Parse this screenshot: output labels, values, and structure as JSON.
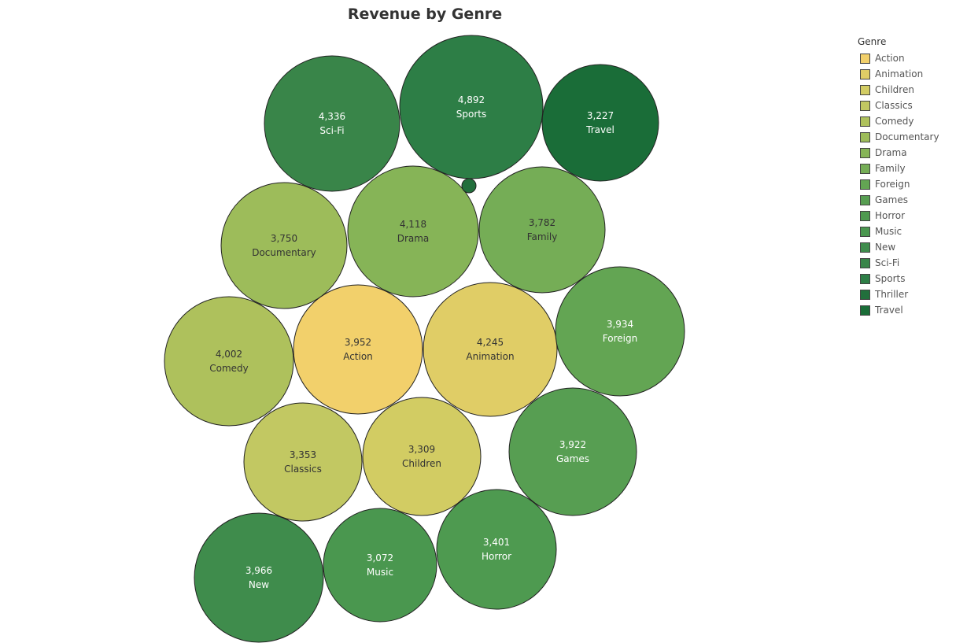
{
  "chart_data": {
    "type": "bubble",
    "title": "Revenue by Genre",
    "legend": {
      "title": "Genre",
      "items": [
        {
          "label": "Action",
          "color": "#f2d06b"
        },
        {
          "label": "Animation",
          "color": "#e0cd66"
        },
        {
          "label": "Children",
          "color": "#d2cc63"
        },
        {
          "label": "Classics",
          "color": "#c2c862"
        },
        {
          "label": "Comedy",
          "color": "#aec15c"
        },
        {
          "label": "Documentary",
          "color": "#9dbc5a"
        },
        {
          "label": "Drama",
          "color": "#86b457"
        },
        {
          "label": "Family",
          "color": "#75ad56"
        },
        {
          "label": "Foreign",
          "color": "#63a553"
        },
        {
          "label": "Games",
          "color": "#579e52"
        },
        {
          "label": "Horror",
          "color": "#4e9a50"
        },
        {
          "label": "Music",
          "color": "#4a974f"
        },
        {
          "label": "New",
          "color": "#3f8c4c"
        },
        {
          "label": "Sci-Fi",
          "color": "#398549"
        },
        {
          "label": "Sports",
          "color": "#2d7e46"
        },
        {
          "label": "Thriller",
          "color": "#226f3c"
        },
        {
          "label": "Travel",
          "color": "#1a6d38"
        }
      ]
    },
    "bubbles": [
      {
        "genre": "Sci-Fi",
        "value": 4336,
        "label_value": "4,336",
        "color": "#398549",
        "text_color": "#ffffff"
      },
      {
        "genre": "Sports",
        "value": 4892,
        "label_value": "4,892",
        "color": "#2d7e46",
        "text_color": "#ffffff"
      },
      {
        "genre": "Travel",
        "value": 3227,
        "label_value": "3,227",
        "color": "#1a6d38",
        "text_color": "#ffffff"
      },
      {
        "genre": "Documentary",
        "value": 3750,
        "label_value": "3,750",
        "color": "#9dbc5a",
        "text_color": "#333333"
      },
      {
        "genre": "Drama",
        "value": 4118,
        "label_value": "4,118",
        "color": "#86b457",
        "text_color": "#333333"
      },
      {
        "genre": "Family",
        "value": 3782,
        "label_value": "3,782",
        "color": "#75ad56",
        "text_color": "#333333"
      },
      {
        "genre": "Comedy",
        "value": 4002,
        "label_value": "4,002",
        "color": "#aec15c",
        "text_color": "#333333"
      },
      {
        "genre": "Action",
        "value": 3952,
        "label_value": "3,952",
        "color": "#f2d06b",
        "text_color": "#333333"
      },
      {
        "genre": "Animation",
        "value": 4245,
        "label_value": "4,245",
        "color": "#e0cd66",
        "text_color": "#333333"
      },
      {
        "genre": "Foreign",
        "value": 3934,
        "label_value": "3,934",
        "color": "#63a553",
        "text_color": "#ffffff"
      },
      {
        "genre": "Classics",
        "value": 3353,
        "label_value": "3,353",
        "color": "#c2c862",
        "text_color": "#333333"
      },
      {
        "genre": "Children",
        "value": 3309,
        "label_value": "3,309",
        "color": "#d2cc63",
        "text_color": "#333333"
      },
      {
        "genre": "Games",
        "value": 3922,
        "label_value": "3,922",
        "color": "#579e52",
        "text_color": "#ffffff"
      },
      {
        "genre": "New",
        "value": 3966,
        "label_value": "3,966",
        "color": "#3f8c4c",
        "text_color": "#ffffff"
      },
      {
        "genre": "Music",
        "value": 3072,
        "label_value": "3,072",
        "color": "#4a974f",
        "text_color": "#ffffff"
      },
      {
        "genre": "Horror",
        "value": 3401,
        "label_value": "3,401",
        "color": "#4e9a50",
        "text_color": "#ffffff"
      },
      {
        "genre": "Thriller",
        "value": 0,
        "label_value": "",
        "color": "#226f3c",
        "text_color": "#ffffff"
      }
    ]
  }
}
